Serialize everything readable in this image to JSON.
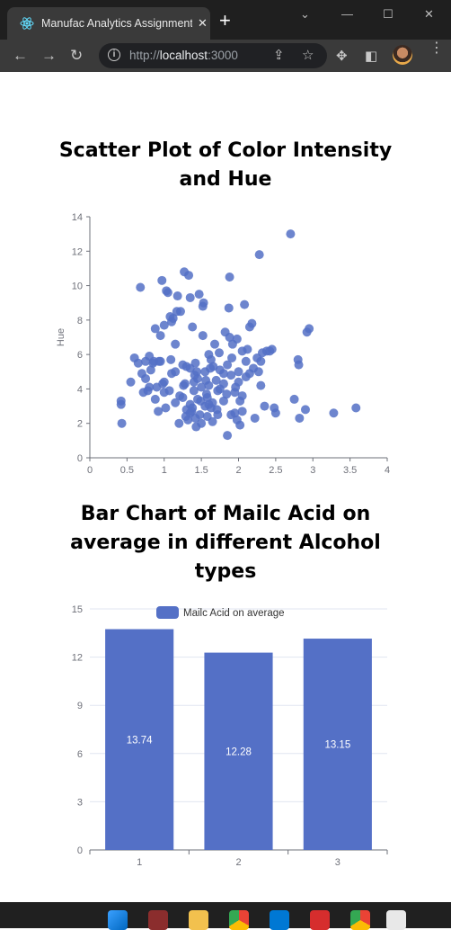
{
  "browser": {
    "tab_title": "Manufac Analytics Assignment",
    "tab_close": "✕",
    "new_tab": "+",
    "url_prefix": "http://",
    "url_host": "localhost",
    "url_suffix": ":3000"
  },
  "scatter": {
    "title": "Scatter Plot of Color Intensity and Hue",
    "chart_data": {
      "type": "scatter",
      "title": "Scatter Plot of Color Intensity and Hue",
      "xlabel": "",
      "ylabel": "Hue",
      "xlim": [
        0,
        4
      ],
      "ylim": [
        0,
        14
      ],
      "xticks": [
        "0",
        "0.5",
        "1",
        "1.5",
        "2",
        "2.5",
        "3",
        "3.5",
        "4"
      ],
      "yticks": [
        "0",
        "2",
        "4",
        "6",
        "8",
        "10",
        "12",
        "14"
      ],
      "points": [
        [
          0.42,
          3.3
        ],
        [
          0.42,
          3.1
        ],
        [
          0.43,
          2.0
        ],
        [
          0.55,
          4.4
        ],
        [
          0.6,
          5.8
        ],
        [
          0.65,
          5.5
        ],
        [
          0.7,
          4.9
        ],
        [
          0.72,
          3.8
        ],
        [
          0.75,
          4.6
        ],
        [
          0.75,
          5.6
        ],
        [
          0.78,
          3.9
        ],
        [
          0.8,
          5.9
        ],
        [
          0.82,
          5.1
        ],
        [
          0.85,
          5.5
        ],
        [
          0.88,
          7.5
        ],
        [
          0.9,
          4.1
        ],
        [
          0.92,
          2.7
        ],
        [
          0.95,
          7.1
        ],
        [
          0.95,
          5.6
        ],
        [
          0.98,
          4.3
        ],
        [
          1.0,
          3.8
        ],
        [
          1.0,
          7.7
        ],
        [
          1.0,
          4.4
        ],
        [
          1.02,
          2.9
        ],
        [
          1.05,
          9.6
        ],
        [
          1.08,
          8.2
        ],
        [
          1.1,
          7.9
        ],
        [
          1.1,
          4.9
        ],
        [
          1.12,
          8.1
        ],
        [
          1.15,
          3.2
        ],
        [
          1.15,
          6.6
        ],
        [
          1.18,
          9.4
        ],
        [
          1.2,
          2.0
        ],
        [
          1.22,
          8.5
        ],
        [
          1.25,
          5.4
        ],
        [
          1.25,
          3.5
        ],
        [
          1.28,
          4.3
        ],
        [
          1.3,
          5.3
        ],
        [
          1.3,
          2.8
        ],
        [
          1.32,
          2.2
        ],
        [
          1.35,
          5.2
        ],
        [
          1.35,
          9.3
        ],
        [
          1.35,
          2.6
        ],
        [
          1.38,
          2.9
        ],
        [
          1.38,
          7.6
        ],
        [
          1.4,
          4.4
        ],
        [
          1.4,
          3.9
        ],
        [
          1.42,
          2.3
        ],
        [
          1.42,
          5.5
        ],
        [
          1.45,
          3.4
        ],
        [
          1.45,
          4.6
        ],
        [
          1.48,
          2.5
        ],
        [
          1.5,
          2.0
        ],
        [
          1.5,
          4.1
        ],
        [
          1.52,
          8.8
        ],
        [
          1.52,
          7.1
        ],
        [
          1.55,
          3.0
        ],
        [
          1.55,
          5.0
        ],
        [
          1.58,
          3.5
        ],
        [
          1.58,
          2.4
        ],
        [
          1.6,
          4.2
        ],
        [
          1.6,
          6.0
        ],
        [
          1.62,
          5.2
        ],
        [
          1.65,
          2.1
        ],
        [
          1.65,
          3.2
        ],
        [
          1.68,
          6.6
        ],
        [
          1.7,
          4.5
        ],
        [
          1.72,
          3.9
        ],
        [
          1.75,
          4.0
        ],
        [
          1.75,
          5.1
        ],
        [
          1.8,
          3.3
        ],
        [
          1.8,
          4.3
        ],
        [
          1.82,
          7.3
        ],
        [
          1.85,
          5.4
        ],
        [
          1.85,
          1.3
        ],
        [
          1.88,
          7.0
        ],
        [
          1.9,
          2.5
        ],
        [
          1.9,
          4.8
        ],
        [
          1.92,
          6.6
        ],
        [
          1.95,
          2.6
        ],
        [
          1.95,
          3.8
        ],
        [
          1.98,
          6.9
        ],
        [
          2.0,
          5.0
        ],
        [
          2.0,
          4.4
        ],
        [
          2.02,
          1.9
        ],
        [
          2.05,
          6.2
        ],
        [
          2.05,
          3.6
        ],
        [
          2.08,
          8.9
        ],
        [
          2.1,
          5.6
        ],
        [
          2.1,
          4.7
        ],
        [
          2.12,
          6.3
        ],
        [
          2.15,
          4.9
        ],
        [
          2.18,
          7.8
        ],
        [
          2.2,
          5.2
        ],
        [
          2.22,
          2.3
        ],
        [
          2.25,
          5.8
        ],
        [
          2.28,
          11.8
        ],
        [
          2.3,
          5.6
        ],
        [
          2.32,
          6.1
        ],
        [
          2.35,
          3.0
        ],
        [
          2.38,
          6.2
        ],
        [
          2.42,
          6.2
        ],
        [
          2.45,
          6.3
        ],
        [
          2.48,
          2.9
        ],
        [
          2.5,
          2.6
        ],
        [
          2.7,
          13.0
        ],
        [
          2.75,
          3.4
        ],
        [
          2.8,
          5.7
        ],
        [
          2.82,
          2.3
        ],
        [
          2.9,
          2.8
        ],
        [
          2.92,
          7.3
        ],
        [
          2.95,
          7.5
        ],
        [
          3.28,
          2.6
        ],
        [
          3.58,
          2.9
        ],
        [
          0.68,
          9.9
        ],
        [
          0.97,
          10.3
        ],
        [
          1.03,
          9.7
        ],
        [
          1.17,
          8.5
        ],
        [
          1.27,
          10.8
        ],
        [
          1.33,
          10.6
        ],
        [
          1.47,
          9.5
        ],
        [
          1.53,
          9.0
        ],
        [
          1.88,
          10.5
        ],
        [
          1.87,
          8.7
        ],
        [
          1.63,
          2.9
        ],
        [
          1.43,
          1.8
        ],
        [
          1.35,
          3.1
        ],
        [
          1.57,
          3.7
        ],
        [
          1.72,
          2.5
        ],
        [
          1.98,
          2.2
        ],
        [
          2.05,
          2.7
        ],
        [
          1.26,
          4.2
        ],
        [
          1.44,
          5.0
        ],
        [
          1.07,
          3.9
        ],
        [
          1.15,
          5.0
        ],
        [
          0.93,
          5.6
        ],
        [
          1.6,
          3.1
        ],
        [
          1.8,
          4.9
        ],
        [
          1.91,
          5.8
        ],
        [
          2.27,
          5.0
        ],
        [
          2.15,
          7.6
        ],
        [
          1.74,
          6.1
        ],
        [
          1.66,
          5.3
        ],
        [
          1.56,
          4.5
        ],
        [
          1.49,
          3.3
        ],
        [
          1.37,
          2.7
        ],
        [
          1.29,
          2.4
        ],
        [
          1.21,
          3.6
        ],
        [
          1.09,
          5.7
        ],
        [
          0.86,
          5.6
        ],
        [
          0.88,
          3.4
        ],
        [
          0.8,
          4.1
        ],
        [
          2.02,
          3.3
        ],
        [
          1.96,
          4.1
        ],
        [
          1.84,
          3.7
        ],
        [
          1.71,
          2.8
        ],
        [
          2.3,
          4.2
        ],
        [
          2.81,
          5.4
        ],
        [
          1.41,
          4.8
        ],
        [
          1.63,
          5.7
        ]
      ],
      "point_color": "#5470c6"
    }
  },
  "bar": {
    "title": "Bar Chart of Mailc Acid on average in different Alcohol types",
    "chart_data": {
      "type": "bar",
      "title": "Bar Chart of Mailc Acid on average in different Alcohol types",
      "categories": [
        "1",
        "2",
        "3"
      ],
      "series": [
        {
          "name": "Mailc Acid on average",
          "values": [
            13.74,
            12.28,
            13.15
          ]
        }
      ],
      "value_labels": [
        "13.74",
        "12.28",
        "13.15"
      ],
      "ylim": [
        0,
        15
      ],
      "yticks": [
        "0",
        "3",
        "6",
        "9",
        "12",
        "15"
      ],
      "xlabel": "",
      "ylabel": "",
      "legend_position": "top-center",
      "bar_color": "#5470c6",
      "grid": true
    }
  }
}
